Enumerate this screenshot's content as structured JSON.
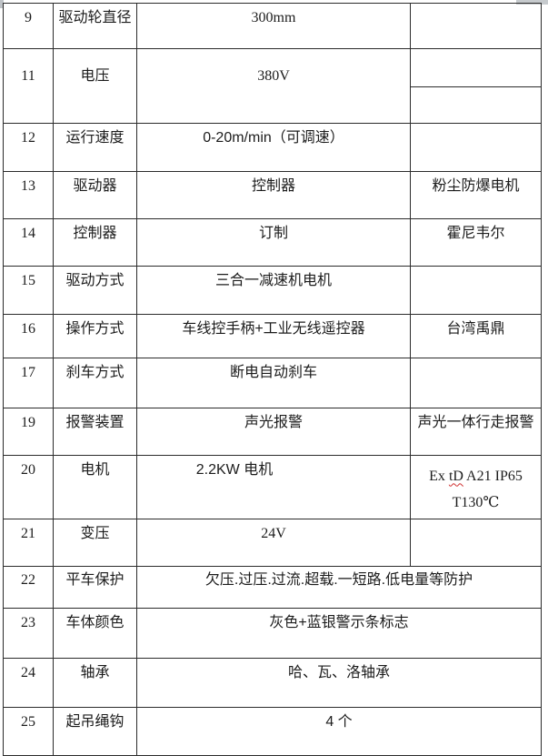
{
  "table": {
    "squiggle_color": "#d03030",
    "border_color": "#2b2b2b",
    "rows": [
      {
        "no": "9",
        "label": "驱动轮直径",
        "value": "300mm",
        "extra": ""
      },
      {
        "no": "11",
        "label": "电压",
        "value": "380V",
        "extra": "",
        "split_extra": true
      },
      {
        "no": "12",
        "label": "运行速度",
        "value": "0-20m/min（可调速）",
        "extra": ""
      },
      {
        "no": "13",
        "label": "驱动器",
        "value": "控制器",
        "extra": "粉尘防爆电机"
      },
      {
        "no": "14",
        "label": "控制器",
        "value": "订制",
        "extra": "霍尼韦尔"
      },
      {
        "no": "15",
        "label": "驱动方式",
        "value": "三合一减速机电机",
        "extra": ""
      },
      {
        "no": "16",
        "label": "操作方式",
        "value": "车线控手柄+工业无线遥控器",
        "extra": "台湾禹鼎"
      },
      {
        "no": "17",
        "label": "刹车方式",
        "value": "断电自动刹车",
        "extra": ""
      },
      {
        "no": "19",
        "label": "报警装置",
        "value": "声光报警",
        "extra": "声光一体行走报警"
      },
      {
        "no": "20",
        "label": "电机",
        "value": "2.2KW 电机",
        "extra_lines": [
          {
            "pre": "Ex ",
            "wavy": "tD",
            "post": " A21 IP65"
          },
          {
            "text": "T130℃"
          }
        ]
      },
      {
        "no": "21",
        "label": "变压",
        "value": "24V",
        "extra": ""
      },
      {
        "no": "22",
        "label": "平车保护",
        "value": "欠压.过压.过流.超载.一短路.低电量等防护",
        "merged": true
      },
      {
        "no": "23",
        "label": "车体颜色",
        "value": "灰色+蓝银警示条标志",
        "merged": true
      },
      {
        "no": "24",
        "label": "轴承",
        "value": "哈、瓦、洛轴承",
        "merged": true
      },
      {
        "no": "25",
        "label": "起吊绳钩",
        "value": "4 个",
        "merged": true
      }
    ]
  }
}
